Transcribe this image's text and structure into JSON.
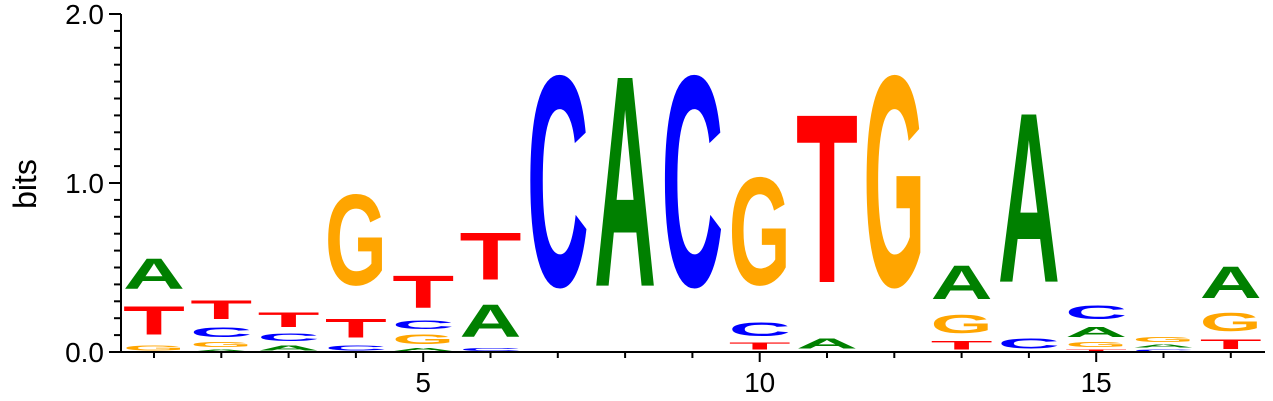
{
  "chart_data": {
    "type": "sequence-logo",
    "title": "",
    "xlabel": "",
    "ylabel": "bits",
    "ylim": [
      0,
      2
    ],
    "y_ticks": [
      {
        "value": 0,
        "label": "0.0"
      },
      {
        "value": 1,
        "label": "1.0"
      },
      {
        "value": 2,
        "label": "2.0"
      }
    ],
    "x_ticks": [
      {
        "value": 5,
        "label": "5"
      },
      {
        "value": 10,
        "label": "10"
      },
      {
        "value": 15,
        "label": "15"
      }
    ],
    "colors": {
      "A": "#008000",
      "C": "#0000ff",
      "G": "#ffa500",
      "T": "#ff0000"
    },
    "positions": [
      {
        "pos": 1,
        "stack": [
          [
            "G",
            0.05
          ],
          [
            "T",
            0.27
          ],
          [
            "A",
            0.29
          ]
        ]
      },
      {
        "pos": 2,
        "stack": [
          [
            "A",
            0.02
          ],
          [
            "G",
            0.05
          ],
          [
            "C",
            0.09
          ],
          [
            "T",
            0.18
          ]
        ]
      },
      {
        "pos": 3,
        "stack": [
          [
            "A",
            0.05
          ],
          [
            "C",
            0.07
          ],
          [
            "T",
            0.14
          ]
        ]
      },
      {
        "pos": 4,
        "stack": [
          [
            "C",
            0.05
          ],
          [
            "T",
            0.18
          ],
          [
            "G",
            0.86
          ]
        ]
      },
      {
        "pos": 5,
        "stack": [
          [
            "A",
            0.03
          ],
          [
            "G",
            0.09
          ],
          [
            "C",
            0.08
          ],
          [
            "T",
            0.31
          ]
        ]
      },
      {
        "pos": 6,
        "stack": [
          [
            "C",
            0.03
          ],
          [
            "A",
            0.31
          ],
          [
            "T",
            0.45
          ]
        ]
      },
      {
        "pos": 7,
        "stack": [
          [
            "C",
            2.0
          ]
        ]
      },
      {
        "pos": 8,
        "stack": [
          [
            "A",
            2.0
          ]
        ]
      },
      {
        "pos": 9,
        "stack": [
          [
            "C",
            2.0
          ]
        ]
      },
      {
        "pos": 10,
        "stack": [
          [
            "T",
            0.07
          ],
          [
            "C",
            0.13
          ],
          [
            "G",
            1.02
          ]
        ]
      },
      {
        "pos": 11,
        "stack": [
          [
            "A",
            0.1
          ],
          [
            "T",
            1.6
          ]
        ]
      },
      {
        "pos": 12,
        "stack": [
          [
            "G",
            2.0
          ]
        ]
      },
      {
        "pos": 13,
        "stack": [
          [
            "T",
            0.08
          ],
          [
            "G",
            0.17
          ],
          [
            "A",
            0.32
          ]
        ]
      },
      {
        "pos": 14,
        "stack": [
          [
            "C",
            0.1
          ],
          [
            "A",
            1.61
          ]
        ]
      },
      {
        "pos": 15,
        "stack": [
          [
            "T",
            0.02
          ],
          [
            "G",
            0.05
          ],
          [
            "A",
            0.1
          ],
          [
            "C",
            0.13
          ]
        ]
      },
      {
        "pos": 16,
        "stack": [
          [
            "C",
            0.02
          ],
          [
            "A",
            0.03
          ],
          [
            "G",
            0.05
          ]
        ]
      },
      {
        "pos": 17,
        "stack": [
          [
            "T",
            0.09
          ],
          [
            "G",
            0.17
          ],
          [
            "A",
            0.3
          ]
        ]
      }
    ]
  }
}
